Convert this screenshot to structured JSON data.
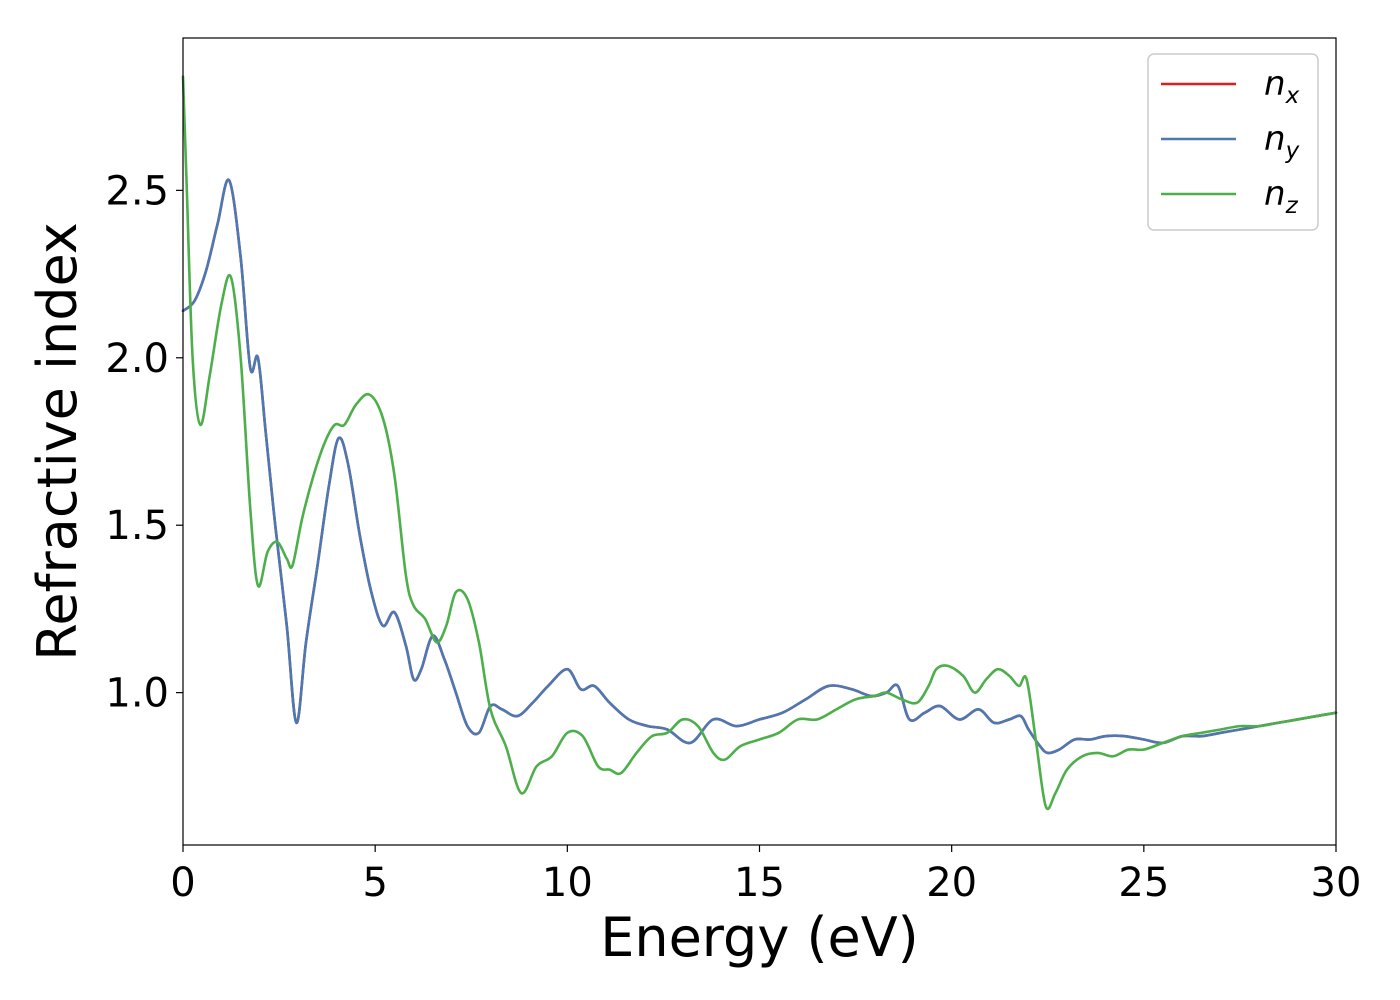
{
  "chart_data": {
    "type": "line",
    "title": "",
    "xlabel": "Energy (eV)",
    "ylabel": "Refractive index",
    "xlim": [
      0,
      30
    ],
    "ylim": [
      0.545,
      2.955
    ],
    "xticks": [
      0,
      5,
      10,
      15,
      20,
      25,
      30
    ],
    "yticks": [
      1.0,
      1.5,
      2.0,
      2.5
    ],
    "xtick_labels": [
      "0",
      "5",
      "10",
      "15",
      "20",
      "25",
      "30"
    ],
    "ytick_labels": [
      "1.0",
      "1.5",
      "2.0",
      "2.5"
    ],
    "grid": false,
    "legend_position": "top-right",
    "series": [
      {
        "name": "n_x",
        "legend_base": "n",
        "legend_sub": "x",
        "color": "#e41a1c",
        "x": [
          0,
          0.3,
          0.6,
          0.9,
          1.2,
          1.5,
          1.75,
          1.95,
          2.15,
          2.4,
          2.7,
          2.95,
          3.2,
          3.5,
          3.8,
          4.05,
          4.3,
          4.6,
          4.9,
          5.2,
          5.5,
          5.8,
          6.0,
          6.2,
          6.5,
          6.8,
          7.1,
          7.4,
          7.7,
          8.0,
          8.3,
          8.7,
          9.1,
          9.5,
          10.0,
          10.35,
          10.7,
          11.1,
          11.6,
          12.1,
          12.6,
          13.2,
          13.8,
          14.4,
          15.0,
          15.6,
          16.2,
          16.8,
          17.4,
          17.9,
          18.3,
          18.6,
          18.9,
          19.3,
          19.7,
          20.2,
          20.7,
          21.1,
          21.5,
          21.8,
          22.0,
          22.3,
          22.5,
          22.8,
          23.2,
          23.6,
          24.0,
          24.5,
          25.0,
          25.5,
          26.0,
          26.5,
          27.0,
          27.5,
          28.0,
          28.5,
          29.0,
          29.5,
          30.0
        ],
        "y": [
          2.14,
          2.17,
          2.26,
          2.4,
          2.53,
          2.3,
          1.97,
          2.0,
          1.78,
          1.5,
          1.2,
          0.91,
          1.15,
          1.38,
          1.62,
          1.76,
          1.68,
          1.47,
          1.3,
          1.2,
          1.24,
          1.14,
          1.04,
          1.07,
          1.17,
          1.1,
          1.0,
          0.9,
          0.88,
          0.96,
          0.95,
          0.93,
          0.97,
          1.02,
          1.07,
          1.01,
          1.02,
          0.97,
          0.92,
          0.9,
          0.89,
          0.85,
          0.92,
          0.9,
          0.92,
          0.94,
          0.98,
          1.02,
          1.01,
          0.99,
          1.0,
          1.02,
          0.92,
          0.94,
          0.96,
          0.92,
          0.95,
          0.91,
          0.92,
          0.93,
          0.89,
          0.84,
          0.82,
          0.83,
          0.86,
          0.86,
          0.87,
          0.87,
          0.86,
          0.85,
          0.87,
          0.87,
          0.88,
          0.89,
          0.9,
          0.91,
          0.92,
          0.93,
          0.94
        ]
      },
      {
        "name": "n_y",
        "legend_base": "n",
        "legend_sub": "y",
        "color": "#4a79b4",
        "x": [
          0,
          0.3,
          0.6,
          0.9,
          1.2,
          1.5,
          1.75,
          1.95,
          2.15,
          2.4,
          2.7,
          2.95,
          3.2,
          3.5,
          3.8,
          4.05,
          4.3,
          4.6,
          4.9,
          5.2,
          5.5,
          5.8,
          6.0,
          6.2,
          6.5,
          6.8,
          7.1,
          7.4,
          7.7,
          8.0,
          8.3,
          8.7,
          9.1,
          9.5,
          10.0,
          10.35,
          10.7,
          11.1,
          11.6,
          12.1,
          12.6,
          13.2,
          13.8,
          14.4,
          15.0,
          15.6,
          16.2,
          16.8,
          17.4,
          17.9,
          18.3,
          18.6,
          18.9,
          19.3,
          19.7,
          20.2,
          20.7,
          21.1,
          21.5,
          21.8,
          22.0,
          22.3,
          22.5,
          22.8,
          23.2,
          23.6,
          24.0,
          24.5,
          25.0,
          25.5,
          26.0,
          26.5,
          27.0,
          27.5,
          28.0,
          28.5,
          29.0,
          29.5,
          30.0
        ],
        "y": [
          2.14,
          2.17,
          2.26,
          2.4,
          2.53,
          2.3,
          1.97,
          2.0,
          1.78,
          1.5,
          1.2,
          0.91,
          1.15,
          1.38,
          1.62,
          1.76,
          1.68,
          1.47,
          1.3,
          1.2,
          1.24,
          1.14,
          1.04,
          1.07,
          1.17,
          1.1,
          1.0,
          0.9,
          0.88,
          0.96,
          0.95,
          0.93,
          0.97,
          1.02,
          1.07,
          1.01,
          1.02,
          0.97,
          0.92,
          0.9,
          0.89,
          0.85,
          0.92,
          0.9,
          0.92,
          0.94,
          0.98,
          1.02,
          1.01,
          0.99,
          1.0,
          1.02,
          0.92,
          0.94,
          0.96,
          0.92,
          0.95,
          0.91,
          0.92,
          0.93,
          0.89,
          0.84,
          0.82,
          0.83,
          0.86,
          0.86,
          0.87,
          0.87,
          0.86,
          0.85,
          0.87,
          0.87,
          0.88,
          0.89,
          0.9,
          0.91,
          0.92,
          0.93,
          0.94
        ]
      },
      {
        "name": "n_z",
        "legend_base": "n",
        "legend_sub": "z",
        "color": "#4daf4a",
        "x": [
          0,
          0.1,
          0.25,
          0.45,
          0.7,
          1.0,
          1.25,
          1.5,
          1.75,
          1.95,
          2.2,
          2.45,
          2.7,
          2.85,
          3.1,
          3.4,
          3.7,
          3.95,
          4.2,
          4.5,
          4.85,
          5.2,
          5.5,
          5.8,
          6.0,
          6.3,
          6.6,
          6.85,
          7.1,
          7.4,
          7.7,
          8.0,
          8.4,
          8.8,
          9.2,
          9.6,
          10.0,
          10.4,
          10.8,
          11.1,
          11.4,
          11.8,
          12.2,
          12.6,
          13.0,
          13.4,
          13.8,
          14.1,
          14.5,
          15.0,
          15.5,
          16.0,
          16.5,
          17.0,
          17.5,
          18.0,
          18.3,
          18.7,
          19.1,
          19.4,
          19.6,
          19.9,
          20.3,
          20.6,
          20.9,
          21.2,
          21.5,
          21.75,
          21.95,
          22.2,
          22.45,
          22.7,
          23.0,
          23.4,
          23.8,
          24.2,
          24.6,
          25.0,
          25.5,
          26.0,
          26.5,
          27.0,
          27.5,
          28.0,
          28.5,
          29.0,
          29.5,
          30.0
        ],
        "y": [
          2.84,
          2.5,
          2.0,
          1.8,
          1.95,
          2.16,
          2.24,
          2.0,
          1.55,
          1.32,
          1.42,
          1.45,
          1.4,
          1.38,
          1.52,
          1.65,
          1.75,
          1.8,
          1.8,
          1.86,
          1.89,
          1.82,
          1.65,
          1.35,
          1.26,
          1.22,
          1.15,
          1.2,
          1.3,
          1.28,
          1.15,
          0.95,
          0.84,
          0.7,
          0.78,
          0.81,
          0.88,
          0.87,
          0.78,
          0.77,
          0.76,
          0.82,
          0.87,
          0.88,
          0.92,
          0.9,
          0.82,
          0.8,
          0.84,
          0.86,
          0.88,
          0.92,
          0.92,
          0.95,
          0.98,
          0.99,
          1.0,
          0.98,
          0.97,
          1.02,
          1.07,
          1.08,
          1.05,
          1.0,
          1.04,
          1.07,
          1.05,
          1.02,
          1.04,
          0.85,
          0.66,
          0.7,
          0.77,
          0.81,
          0.82,
          0.81,
          0.83,
          0.83,
          0.85,
          0.87,
          0.88,
          0.89,
          0.9,
          0.9,
          0.91,
          0.92,
          0.93,
          0.94
        ]
      }
    ]
  }
}
